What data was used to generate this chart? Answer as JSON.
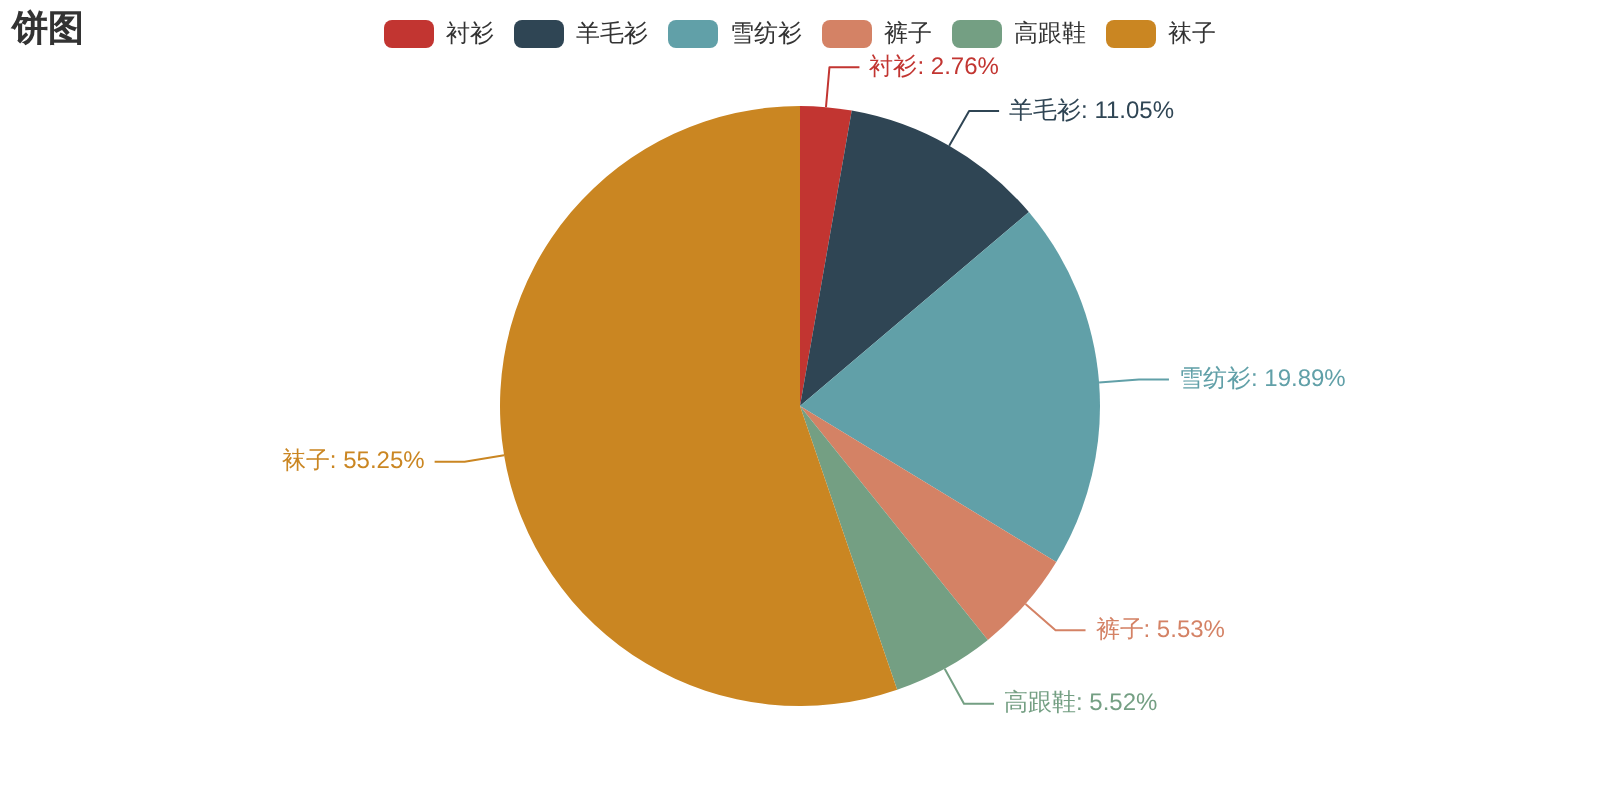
{
  "chart_data": {
    "type": "pie",
    "title": "饼图",
    "categories": [
      "衬衫",
      "羊毛衫",
      "雪纺衫",
      "裤子",
      "高跟鞋",
      "袜子"
    ],
    "values": [
      2.76,
      11.05,
      19.89,
      5.53,
      5.52,
      55.25
    ],
    "colors": [
      "#c23531",
      "#2f4554",
      "#61a0a8",
      "#d48265",
      "#749f83",
      "#ca8622"
    ],
    "value_labels": [
      "衬衫: 2.76%",
      "羊毛衫: 11.05%",
      "雪纺衫: 19.89%",
      "裤子: 5.53%",
      "高跟鞋: 5.52%",
      "袜子: 55.25%"
    ],
    "legend": "top"
  }
}
